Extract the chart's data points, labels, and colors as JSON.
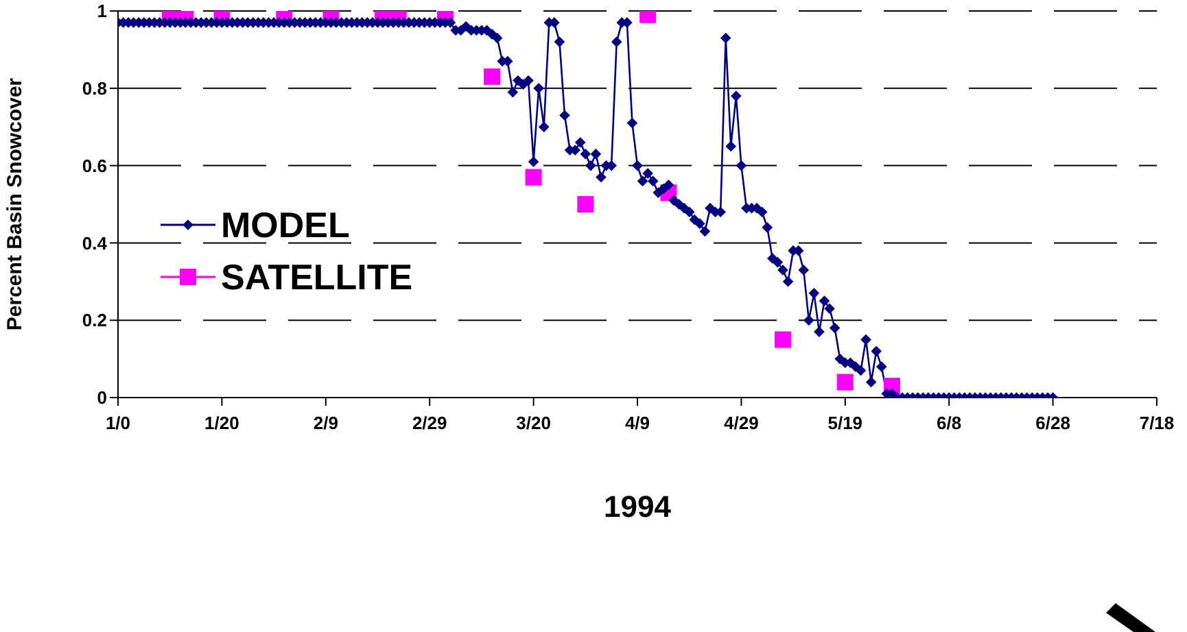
{
  "chart_data": {
    "type": "line",
    "xlabel": "1994",
    "ylabel": "Percent Basin Snowcover",
    "xlim": [
      "1993-12-31",
      "1994-07-19"
    ],
    "xticks": [
      {
        "value": "1993-12-31",
        "label": "1/0"
      },
      {
        "value": "1994-01-20",
        "label": "1/20"
      },
      {
        "value": "1994-02-09",
        "label": "2/9"
      },
      {
        "value": "1994-03-01",
        "label": "2/29"
      },
      {
        "value": "1994-03-21",
        "label": "3/20"
      },
      {
        "value": "1994-04-10",
        "label": "4/9"
      },
      {
        "value": "1994-04-30",
        "label": "4/29"
      },
      {
        "value": "1994-05-20",
        "label": "5/19"
      },
      {
        "value": "1994-06-09",
        "label": "6/8"
      },
      {
        "value": "1994-06-29",
        "label": "6/28"
      },
      {
        "value": "1994-07-19",
        "label": "7/18"
      }
    ],
    "ylim": [
      0,
      1
    ],
    "yticks": [
      0,
      0.2,
      0.4,
      0.6,
      0.8,
      1
    ],
    "grid": "y",
    "legend": "left",
    "series": [
      {
        "name": "MODEL",
        "marker": "diamond",
        "color": "#000080",
        "x": [
          "1993-12-31",
          "1994-01-01",
          "1994-01-02",
          "1994-01-03",
          "1994-01-04",
          "1994-01-05",
          "1994-01-06",
          "1994-01-07",
          "1994-01-08",
          "1994-01-09",
          "1994-01-10",
          "1994-01-11",
          "1994-01-12",
          "1994-01-13",
          "1994-01-14",
          "1994-01-15",
          "1994-01-16",
          "1994-01-17",
          "1994-01-18",
          "1994-01-19",
          "1994-01-20",
          "1994-01-21",
          "1994-01-22",
          "1994-01-23",
          "1994-01-24",
          "1994-01-25",
          "1994-01-26",
          "1994-01-27",
          "1994-01-28",
          "1994-01-29",
          "1994-01-30",
          "1994-01-31",
          "1994-02-01",
          "1994-02-02",
          "1994-02-03",
          "1994-02-04",
          "1994-02-05",
          "1994-02-06",
          "1994-02-07",
          "1994-02-08",
          "1994-02-09",
          "1994-02-10",
          "1994-02-11",
          "1994-02-12",
          "1994-02-13",
          "1994-02-14",
          "1994-02-15",
          "1994-02-16",
          "1994-02-17",
          "1994-02-18",
          "1994-02-19",
          "1994-02-20",
          "1994-02-21",
          "1994-02-22",
          "1994-02-23",
          "1994-02-24",
          "1994-02-25",
          "1994-02-26",
          "1994-02-27",
          "1994-02-28",
          "1994-03-01",
          "1994-03-02",
          "1994-03-03",
          "1994-03-04",
          "1994-03-05",
          "1994-03-06",
          "1994-03-07",
          "1994-03-08",
          "1994-03-09",
          "1994-03-10",
          "1994-03-11",
          "1994-03-12",
          "1994-03-13",
          "1994-03-14",
          "1994-03-15",
          "1994-03-16",
          "1994-03-17",
          "1994-03-18",
          "1994-03-19",
          "1994-03-20",
          "1994-03-21",
          "1994-03-22",
          "1994-03-23",
          "1994-03-24",
          "1994-03-25",
          "1994-03-26",
          "1994-03-27",
          "1994-03-28",
          "1994-03-29",
          "1994-03-30",
          "1994-03-31",
          "1994-04-01",
          "1994-04-02",
          "1994-04-03",
          "1994-04-04",
          "1994-04-05",
          "1994-04-06",
          "1994-04-07",
          "1994-04-08",
          "1994-04-09",
          "1994-04-10",
          "1994-04-11",
          "1994-04-12",
          "1994-04-13",
          "1994-04-14",
          "1994-04-15",
          "1994-04-16",
          "1994-04-17",
          "1994-04-18",
          "1994-04-19",
          "1994-04-20",
          "1994-04-21",
          "1994-04-22",
          "1994-04-23",
          "1994-04-24",
          "1994-04-25",
          "1994-04-26",
          "1994-04-27",
          "1994-04-28",
          "1994-04-29",
          "1994-04-30",
          "1994-05-01",
          "1994-05-02",
          "1994-05-03",
          "1994-05-04",
          "1994-05-05",
          "1994-05-06",
          "1994-05-07",
          "1994-05-08",
          "1994-05-09",
          "1994-05-10",
          "1994-05-11",
          "1994-05-12",
          "1994-05-13",
          "1994-05-14",
          "1994-05-15",
          "1994-05-16",
          "1994-05-17",
          "1994-05-18",
          "1994-05-19",
          "1994-05-20",
          "1994-05-21",
          "1994-05-22",
          "1994-05-23",
          "1994-05-24",
          "1994-05-25",
          "1994-05-26",
          "1994-05-27",
          "1994-05-28",
          "1994-05-29",
          "1994-05-30",
          "1994-05-31",
          "1994-06-01",
          "1994-06-02",
          "1994-06-03",
          "1994-06-04",
          "1994-06-05",
          "1994-06-06",
          "1994-06-07",
          "1994-06-08",
          "1994-06-09",
          "1994-06-10",
          "1994-06-11",
          "1994-06-12",
          "1994-06-13",
          "1994-06-14",
          "1994-06-15",
          "1994-06-16",
          "1994-06-17",
          "1994-06-18",
          "1994-06-19",
          "1994-06-20",
          "1994-06-21",
          "1994-06-22",
          "1994-06-23",
          "1994-06-24",
          "1994-06-25",
          "1994-06-26",
          "1994-06-27",
          "1994-06-28",
          "1994-06-29"
        ],
        "values": [
          0.97,
          0.97,
          0.97,
          0.97,
          0.97,
          0.97,
          0.97,
          0.97,
          0.97,
          0.97,
          0.97,
          0.97,
          0.97,
          0.97,
          0.97,
          0.97,
          0.97,
          0.97,
          0.97,
          0.97,
          0.97,
          0.97,
          0.97,
          0.97,
          0.97,
          0.97,
          0.97,
          0.97,
          0.97,
          0.97,
          0.97,
          0.97,
          0.97,
          0.97,
          0.97,
          0.97,
          0.97,
          0.97,
          0.97,
          0.97,
          0.97,
          0.97,
          0.97,
          0.97,
          0.97,
          0.97,
          0.97,
          0.97,
          0.97,
          0.97,
          0.97,
          0.97,
          0.97,
          0.97,
          0.97,
          0.97,
          0.97,
          0.97,
          0.97,
          0.97,
          0.97,
          0.97,
          0.97,
          0.97,
          0.97,
          0.95,
          0.95,
          0.96,
          0.95,
          0.95,
          0.95,
          0.95,
          0.94,
          0.93,
          0.87,
          0.87,
          0.79,
          0.82,
          0.81,
          0.82,
          0.61,
          0.8,
          0.7,
          0.97,
          0.97,
          0.92,
          0.73,
          0.64,
          0.64,
          0.66,
          0.63,
          0.6,
          0.63,
          0.57,
          0.6,
          0.6,
          0.92,
          0.97,
          0.97,
          0.71,
          0.6,
          0.56,
          0.58,
          0.56,
          0.53,
          0.54,
          0.55,
          0.51,
          0.5,
          0.49,
          0.48,
          0.46,
          0.45,
          0.43,
          0.49,
          0.48,
          0.48,
          0.93,
          0.65,
          0.78,
          0.6,
          0.49,
          0.49,
          0.49,
          0.48,
          0.44,
          0.36,
          0.35,
          0.33,
          0.3,
          0.38,
          0.38,
          0.33,
          0.2,
          0.27,
          0.17,
          0.25,
          0.23,
          0.18,
          0.1,
          0.09,
          0.09,
          0.08,
          0.07,
          0.15,
          0.04,
          0.12,
          0.08,
          0.01,
          0.01,
          0,
          0,
          0,
          0,
          0,
          0,
          0,
          0,
          0,
          0,
          0,
          0,
          0,
          0,
          0,
          0,
          0,
          0,
          0,
          0,
          0,
          0,
          0,
          0,
          0,
          0,
          0,
          0,
          0,
          0,
          0
        ]
      },
      {
        "name": "SATELLITE",
        "type": "scatter",
        "marker": "square",
        "color": "#ff00ff",
        "x": [
          "1994-01-10",
          "1994-01-13",
          "1994-01-20",
          "1994-02-01",
          "1994-02-10",
          "1994-02-20",
          "1994-02-23",
          "1994-03-04",
          "1994-03-13",
          "1994-03-21",
          "1994-03-31",
          "1994-04-12",
          "1994-04-16",
          "1994-05-08",
          "1994-05-20",
          "1994-05-29"
        ],
        "values": [
          1,
          1,
          1,
          1,
          1,
          1,
          1,
          0.99,
          0.83,
          0.57,
          0.5,
          0.99,
          0.53,
          0.15,
          0.04,
          0.03
        ]
      }
    ]
  }
}
